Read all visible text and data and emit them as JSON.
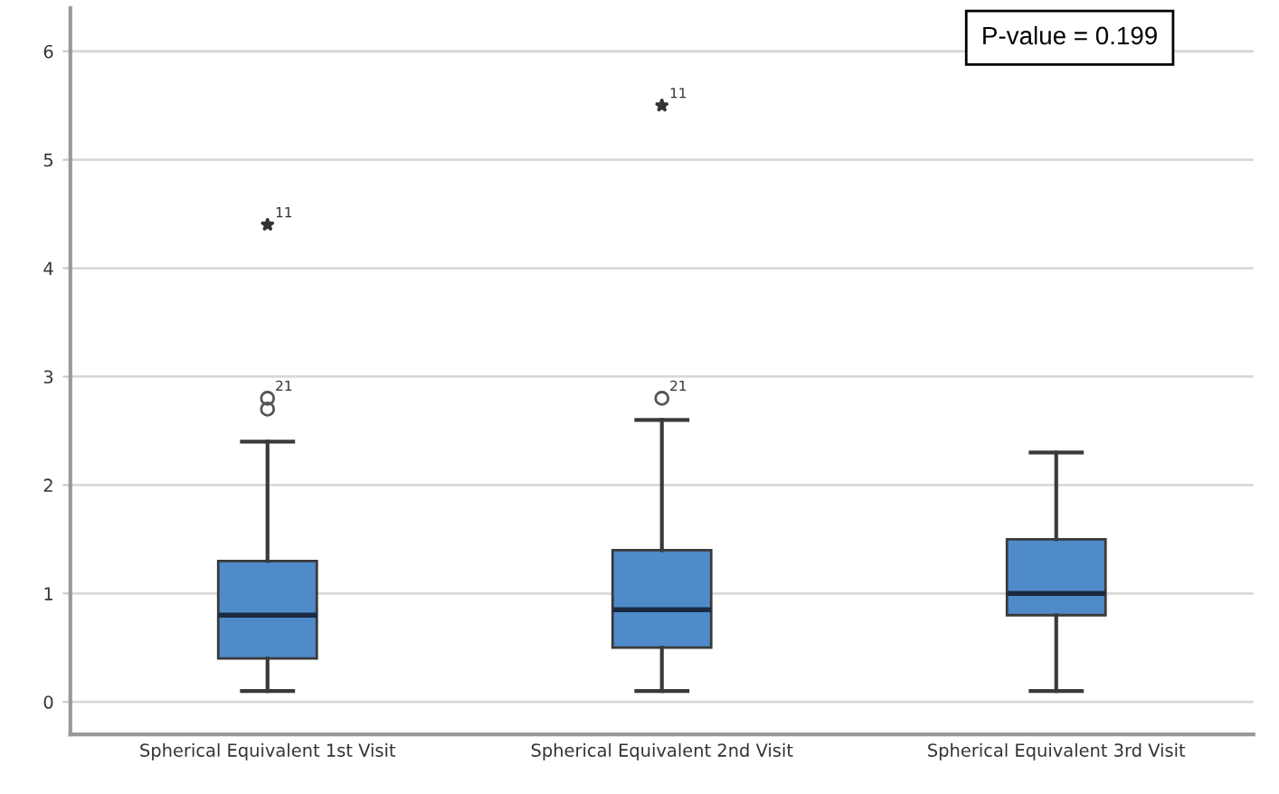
{
  "chart_data": {
    "type": "box",
    "categories": [
      "Spherical Equivalent 1st Visit",
      "Spherical Equivalent 2nd Visit",
      "Spherical Equivalent 3rd Visit"
    ],
    "boxes": [
      {
        "low": 0.1,
        "q1": 0.4,
        "median": 0.8,
        "q3": 1.3,
        "high": 2.4,
        "outliers": [
          2.8,
          2.7,
          4.4
        ]
      },
      {
        "low": 0.1,
        "q1": 0.5,
        "median": 0.85,
        "q3": 1.4,
        "high": 2.6,
        "outliers": [
          2.8,
          5.5
        ]
      },
      {
        "low": 0.1,
        "q1": 0.8,
        "median": 1.0,
        "q3": 1.5,
        "high": 2.3
      }
    ],
    "color": "#4f8bc9",
    "ylim": [
      -0.3,
      6.4
    ],
    "yticks": [
      0,
      1,
      2,
      3,
      4,
      5,
      6
    ],
    "grid": "y",
    "annotations": [
      "21",
      "11",
      "21",
      "11",
      "P-value = 0.199"
    ]
  }
}
